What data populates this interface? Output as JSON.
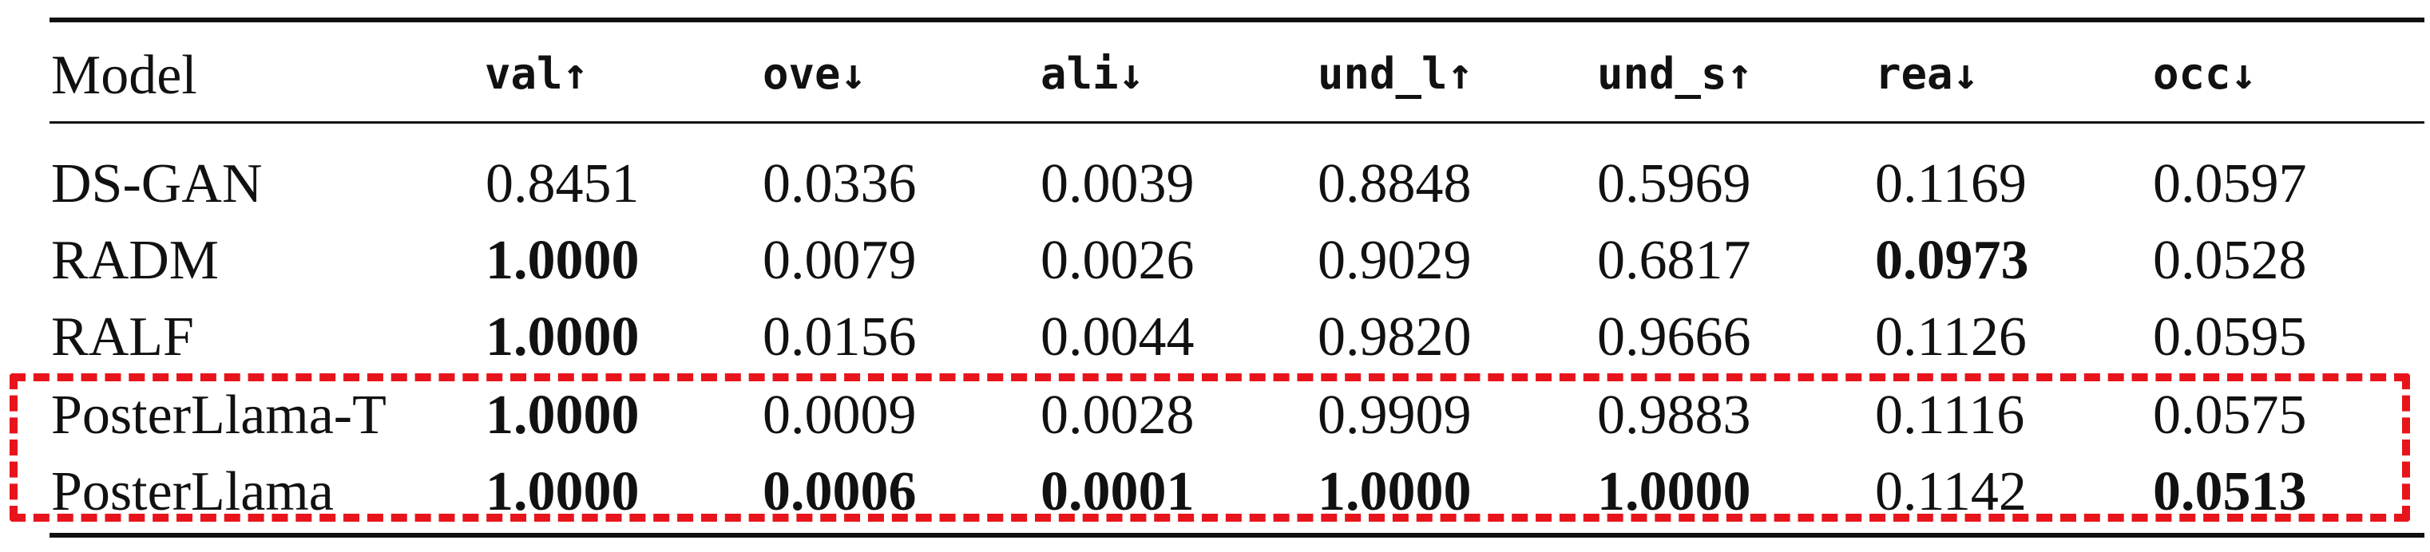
{
  "table": {
    "columns": [
      "Model",
      "val↑",
      "ove↓",
      "ali↓",
      "und_l↑",
      "und_s↑",
      "rea↓",
      "occ↓"
    ],
    "rows": [
      {
        "model": "DS-GAN",
        "values": [
          "0.8451",
          "0.0336",
          "0.0039",
          "0.8848",
          "0.5969",
          "0.1169",
          "0.0597"
        ],
        "bold": [
          false,
          false,
          false,
          false,
          false,
          false,
          false
        ]
      },
      {
        "model": "RADM",
        "values": [
          "1.0000",
          "0.0079",
          "0.0026",
          "0.9029",
          "0.6817",
          "0.0973",
          "0.0528"
        ],
        "bold": [
          true,
          false,
          false,
          false,
          false,
          true,
          false
        ]
      },
      {
        "model": "RALF",
        "values": [
          "1.0000",
          "0.0156",
          "0.0044",
          "0.9820",
          "0.9666",
          "0.1126",
          "0.0595"
        ],
        "bold": [
          true,
          false,
          false,
          false,
          false,
          false,
          false
        ]
      },
      {
        "model": "PosterLlama-T",
        "values": [
          "1.0000",
          "0.0009",
          "0.0028",
          "0.9909",
          "0.9883",
          "0.1116",
          "0.0575"
        ],
        "bold": [
          true,
          false,
          false,
          false,
          false,
          false,
          false
        ]
      },
      {
        "model": "PosterLlama",
        "values": [
          "1.0000",
          "0.0006",
          "0.0001",
          "1.0000",
          "1.0000",
          "0.1142",
          "0.0513"
        ],
        "bold": [
          true,
          true,
          true,
          true,
          true,
          false,
          true
        ]
      }
    ],
    "highlighted_rows": [
      3,
      4
    ],
    "highlight_color": "#e8141b"
  }
}
